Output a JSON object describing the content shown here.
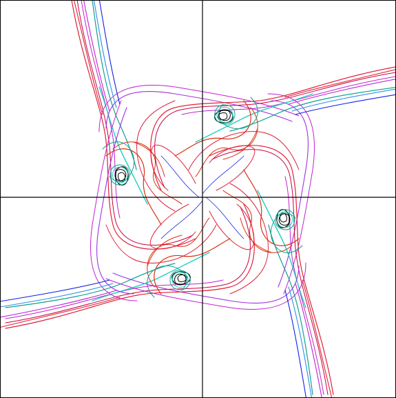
{
  "colors": {
    "background": "#ffffff",
    "axes": "#000000",
    "red": "#e0203a",
    "crimson": "#c8003c",
    "magenta": "#c020d0",
    "violet": "#a030e0",
    "orange_red": "#d83010",
    "blue": "#1020e0",
    "sky": "#2a8ee8",
    "cyan": "#20d0c0",
    "teal": "#10a090",
    "black": "#000000"
  }
}
